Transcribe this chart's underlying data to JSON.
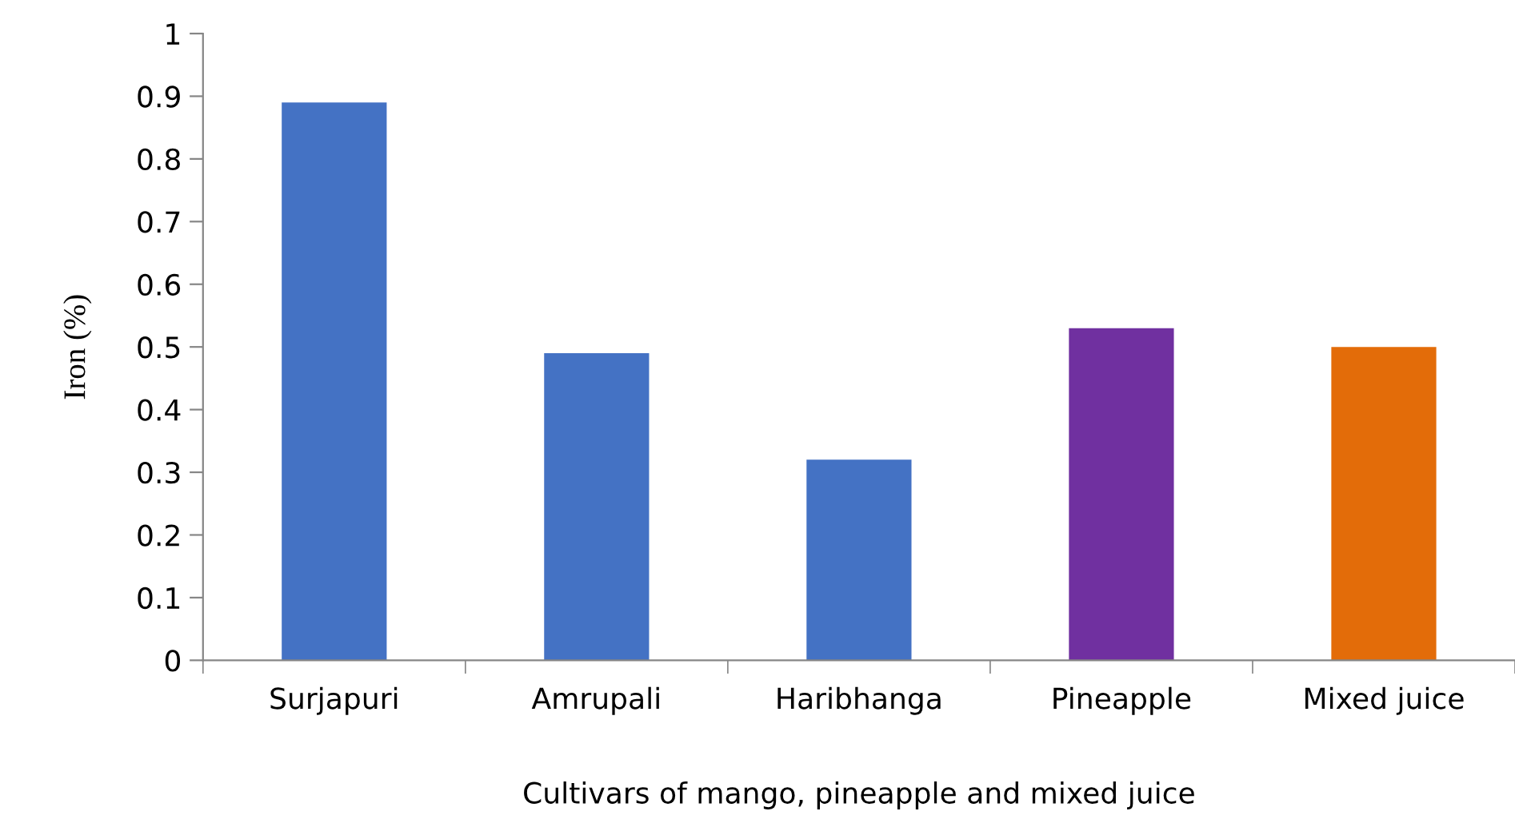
{
  "chart_data": {
    "type": "bar",
    "xlabel": "Cultivars of mango, pineapple and mixed juice",
    "ylabel": "Iron (%)",
    "categories": [
      "Surjapuri",
      "Amrupali",
      "Haribhanga",
      "Pineapple",
      "Mixed juice"
    ],
    "values": [
      0.89,
      0.49,
      0.32,
      0.53,
      0.5
    ],
    "colors": [
      "#4472c4",
      "#4472c4",
      "#4472c4",
      "#7030a0",
      "#e36c09"
    ],
    "ylim": [
      0,
      1
    ],
    "yticks": [
      0,
      0.1,
      0.2,
      0.3,
      0.4,
      0.5,
      0.6,
      0.7,
      0.8,
      0.9,
      1
    ],
    "grid": false,
    "legend": false
  }
}
